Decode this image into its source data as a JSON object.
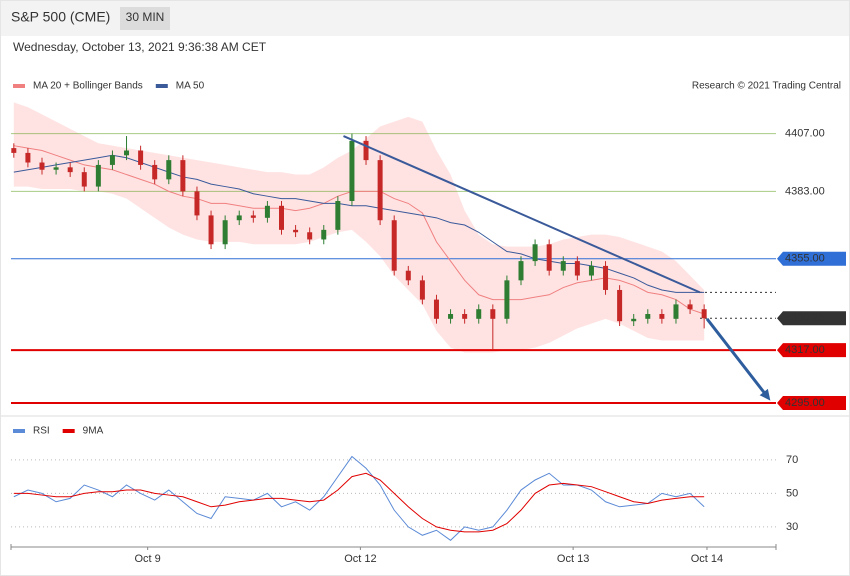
{
  "chart_data": {
    "type": "candlestick",
    "title": "S&P 500 (CME)",
    "interval": "30 MIN",
    "subtitle": "Wednesday, October 13, 2021 9:36:38 AM CET",
    "credit": "Research © 2021 Trading Central",
    "xlim": [
      -0.2,
      54.1
    ],
    "xticks": [
      {
        "value": 9.5,
        "label": "Oct 9"
      },
      {
        "value": 24.6,
        "label": "Oct 12"
      },
      {
        "value": 39.7,
        "label": "Oct 13"
      },
      {
        "value": 49.2,
        "label": "Oct 14"
      }
    ],
    "ylim": [
      4290,
      4421
    ],
    "up_color": "#2e7d32",
    "down_color": "#c62828",
    "open": [
      4401,
      4399,
      4395,
      4392,
      4393,
      4391,
      4385,
      4394,
      4398,
      4400,
      4394,
      4388,
      4396,
      4383,
      4373,
      4361,
      4371,
      4373,
      4372,
      4377,
      4367,
      4366,
      4363,
      4367,
      4379,
      4404,
      4396,
      4371,
      4350,
      4346,
      4338,
      4330,
      4332,
      4330,
      4334,
      4330,
      4346,
      4354,
      4361,
      4350,
      4354,
      4348,
      4352,
      4342,
      4329,
      4330,
      4332,
      4330,
      4336,
      4334
    ],
    "high": [
      4403,
      4401,
      4397,
      4395,
      4395,
      4393,
      4396,
      4400,
      4406,
      4402,
      4396,
      4398,
      4398,
      4385,
      4375,
      4373,
      4375,
      4375,
      4379,
      4379,
      4369,
      4368,
      4369,
      4381,
      4407,
      4406,
      4398,
      4373,
      4352,
      4348,
      4340,
      4334,
      4334,
      4336,
      4336,
      4348,
      4356,
      4363,
      4363,
      4356,
      4356,
      4354,
      4354,
      4344,
      4332,
      4334,
      4334,
      4338,
      4338,
      4336
    ],
    "low": [
      4397,
      4393,
      4390,
      4390,
      4389,
      4383,
      4383,
      4392,
      4396,
      4392,
      4386,
      4386,
      4381,
      4371,
      4359,
      4359,
      4369,
      4370,
      4370,
      4365,
      4364,
      4361,
      4361,
      4365,
      4377,
      4394,
      4369,
      4348,
      4344,
      4336,
      4328,
      4328,
      4328,
      4328,
      4317,
      4328,
      4344,
      4352,
      4348,
      4348,
      4346,
      4346,
      4340,
      4327,
      4327,
      4328,
      4328,
      4328,
      4332,
      4326
    ],
    "close": [
      4399,
      4395,
      4392,
      4393,
      4391,
      4385,
      4394,
      4398,
      4400,
      4394,
      4388,
      4396,
      4383,
      4373,
      4361,
      4371,
      4373,
      4372,
      4377,
      4367,
      4366,
      4363,
      4367,
      4379,
      4404,
      4396,
      4371,
      4350,
      4346,
      4338,
      4330,
      4332,
      4330,
      4334,
      4330,
      4346,
      4354,
      4361,
      4350,
      4354,
      4348,
      4352,
      4342,
      4329,
      4330,
      4332,
      4330,
      4336,
      4334,
      4330.25
    ],
    "series": [
      {
        "name": "MA 20 + Bollinger Bands",
        "color": "#f08080",
        "values": [
          4402,
          4401,
          4400,
          4398,
          4396,
          4394,
          4393,
          4392,
          4390,
          4388,
          4386,
          4383,
          4381,
          4380,
          4378,
          4378,
          4377,
          4376,
          4376,
          4376,
          4375,
          4376,
          4378,
          4381,
          4383,
          4383,
          4383,
          4380,
          4378,
          4374,
          4362,
          4354,
          4346,
          4340,
          4338,
          4338,
          4338,
          4339,
          4340,
          4343,
          4345,
          4346,
          4347,
          4346,
          4344,
          4341,
          4340,
          4338,
          4334,
          4332
        ],
        "upper": [
          4420,
          4418,
          4415,
          4412,
          4409,
          4406,
          4403,
          4402,
          4401,
          4400,
          4399,
          4398,
          4397,
          4396,
          4395,
          4394,
          4393,
          4392,
          4391,
          4391,
          4390,
          4390,
          4393,
          4397,
          4400,
          4405,
          4410,
          4412,
          4414,
          4412,
          4400,
          4390,
          4375,
          4365,
          4361,
          4360,
          4360,
          4360,
          4361,
          4363,
          4364,
          4365,
          4365,
          4364,
          4362,
          4360,
          4358,
          4354,
          4348,
          4342
        ],
        "lower": [
          4385,
          4385,
          4384,
          4384,
          4384,
          4383,
          4383,
          4382,
          4380,
          4376,
          4372,
          4368,
          4365,
          4363,
          4362,
          4362,
          4362,
          4361,
          4361,
          4361,
          4361,
          4362,
          4364,
          4366,
          4367,
          4362,
          4356,
          4348,
          4342,
          4336,
          4325,
          4318,
          4316,
          4316,
          4316,
          4317,
          4317,
          4318,
          4320,
          4323,
          4326,
          4328,
          4330,
          4328,
          4325,
          4322,
          4321,
          4321,
          4321,
          4321
        ]
      },
      {
        "name": "MA 50",
        "color": "#3a5a9a",
        "values": [
          4391,
          4392,
          4393,
          4394,
          4395,
          4396,
          4397,
          4398,
          4397,
          4395,
          4393,
          4391,
          4389,
          4388,
          4386,
          4385,
          4384,
          4382,
          4381,
          4380,
          4380,
          4379,
          4378,
          4378,
          4377,
          4377,
          4376,
          4375,
          4374,
          4373,
          4372,
          4370,
          4369,
          4366,
          4362,
          4358,
          4357,
          4355,
          4354,
          4353,
          4353,
          4352,
          4351,
          4349,
          4347,
          4344,
          4342,
          4341,
          4341,
          4341
        ]
      }
    ],
    "levels": [
      {
        "value": 4407,
        "label": "4407.00",
        "color": "#6aa832"
      },
      {
        "value": 4383,
        "label": "4383.00",
        "color": "#6aa832"
      },
      {
        "value": 4355,
        "label": "4355.00",
        "color": "#2f6fd6"
      },
      {
        "value": 4330.25,
        "label": "4330.25",
        "color": "#333333"
      },
      {
        "value": 4317,
        "label": "4317.00",
        "color": "#e00000"
      },
      {
        "value": 4295,
        "label": "4295.00",
        "color": "#e00000"
      }
    ],
    "trendline": {
      "x": [
        23.4,
        48.7
      ],
      "y": [
        4406,
        4341
      ],
      "color": "#3a5a9a"
    },
    "arrow": {
      "x": [
        49.2,
        53.7
      ],
      "y": [
        4330,
        4296
      ],
      "color": "#2e5d9e"
    },
    "rsi": {
      "ylim": [
        18,
        95
      ],
      "yticks": [
        70,
        50,
        30
      ],
      "series": [
        {
          "name": "RSI",
          "color": "#5b8ad6",
          "values": [
            48,
            52,
            50,
            45,
            47,
            55,
            52,
            48,
            55,
            50,
            46,
            52,
            45,
            38,
            35,
            48,
            47,
            46,
            50,
            42,
            45,
            40,
            48,
            60,
            72,
            65,
            55,
            40,
            30,
            25,
            28,
            22,
            30,
            28,
            30,
            40,
            52,
            58,
            62,
            55,
            55,
            52,
            45,
            42,
            43,
            44,
            50,
            48,
            50,
            42
          ]
        },
        {
          "name": "9MA",
          "color": "#e00000",
          "values": [
            50,
            50,
            49,
            48,
            48,
            50,
            51,
            51,
            52,
            52,
            50,
            49,
            48,
            45,
            42,
            43,
            45,
            46,
            47,
            47,
            46,
            45,
            46,
            52,
            60,
            62,
            58,
            50,
            42,
            35,
            30,
            28,
            27,
            27,
            28,
            32,
            40,
            50,
            55,
            56,
            55,
            54,
            51,
            48,
            45,
            44,
            46,
            47,
            48,
            48
          ]
        }
      ]
    }
  }
}
